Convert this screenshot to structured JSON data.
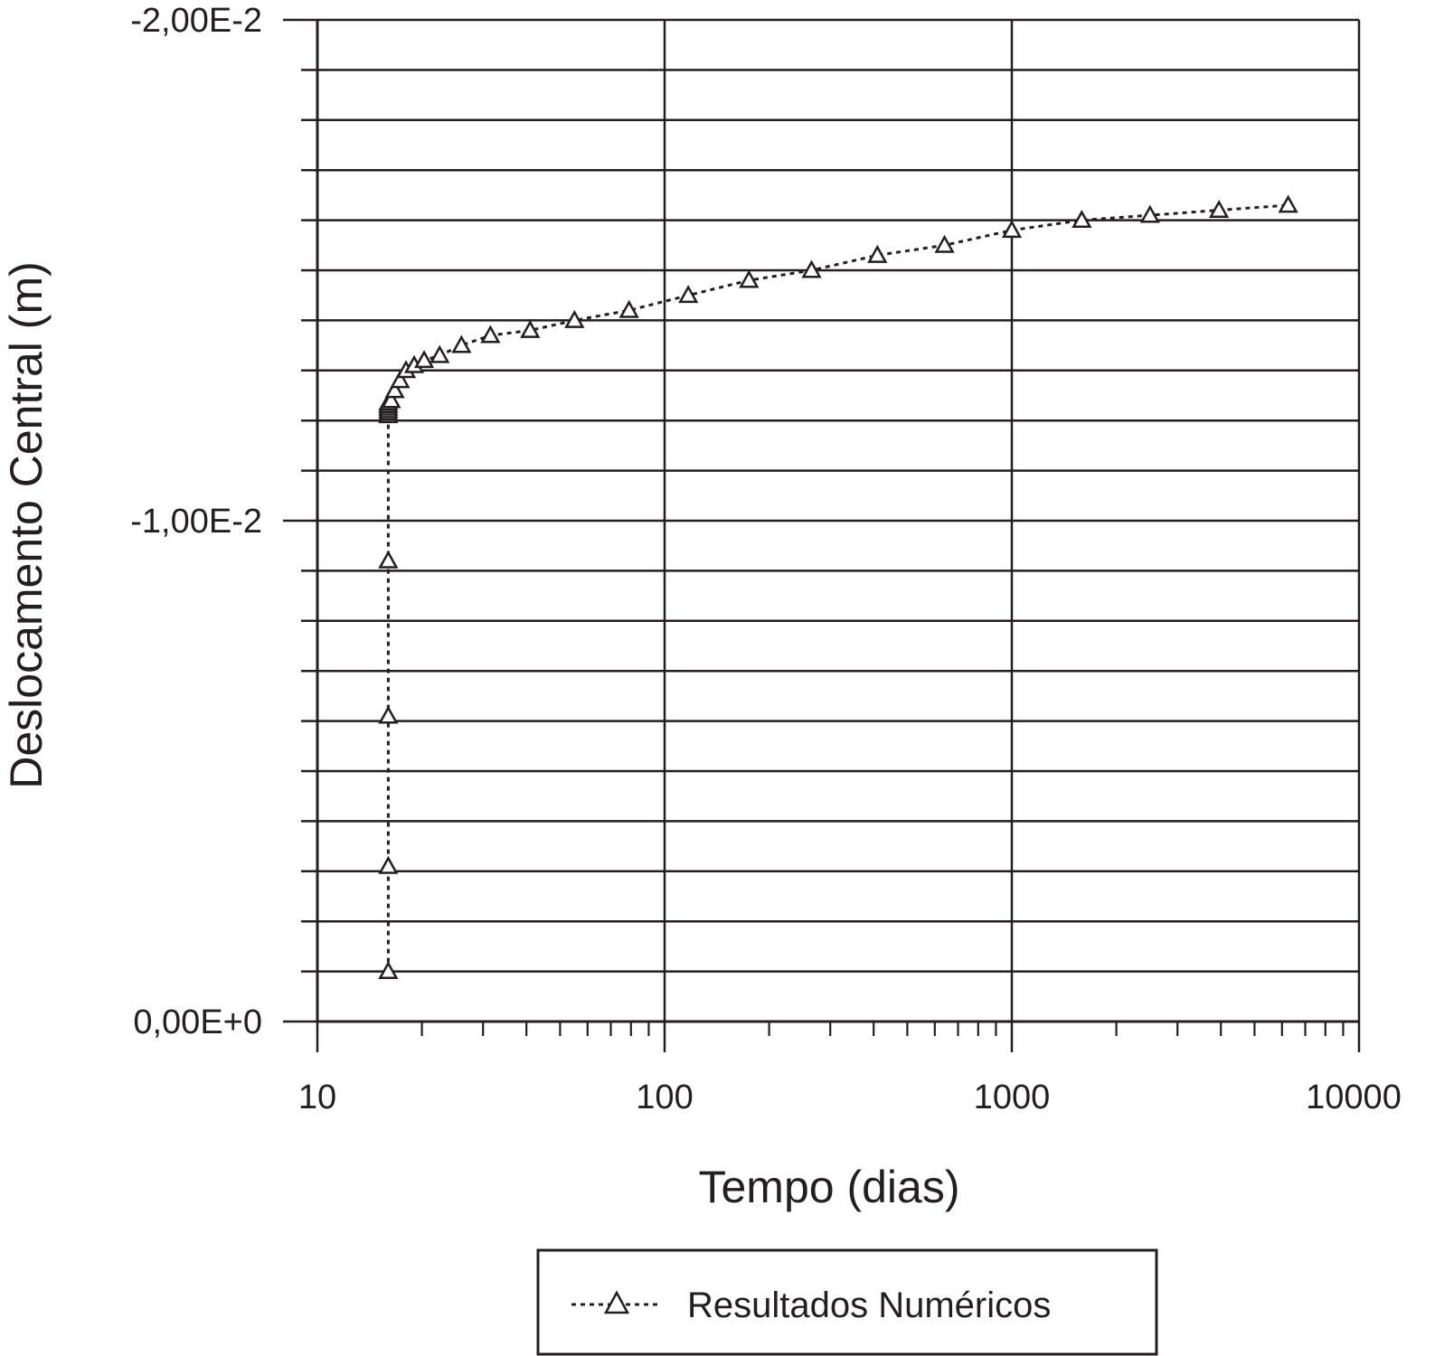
{
  "chart_data": {
    "type": "scatter",
    "x_scale": "log",
    "xlabel": "Tempo (dias)",
    "ylabel": "Deslocamento Central (m)",
    "xlim": [
      10,
      10000
    ],
    "ylim": [
      0,
      -0.02
    ],
    "x_ticks": [
      10,
      100,
      1000,
      10000
    ],
    "x_tick_labels": [
      "10",
      "100",
      "1000",
      "10000"
    ],
    "y_ticks": [
      0,
      -0.01,
      -0.02
    ],
    "y_tick_labels": [
      "0,00E+0",
      "-1,00E-2",
      "-2,00E-2"
    ],
    "y_gridline_step": -0.001,
    "grid": true,
    "legend_position": "bottom",
    "series": [
      {
        "name": "Resultados Numéricos",
        "marker": "triangle-open",
        "line": "dotted",
        "x": [
          16,
          16,
          16,
          16,
          16,
          16,
          16,
          16,
          16,
          16,
          16.3,
          16.7,
          17.3,
          18,
          19,
          20.3,
          22.5,
          26,
          31.5,
          41,
          55,
          79,
          117,
          175,
          265,
          410,
          640,
          1000,
          1590,
          2500,
          3950,
          6250
        ],
        "y": [
          -0.001,
          -0.0031,
          -0.0061,
          -0.0092,
          -0.0121,
          -0.01215,
          -0.0122,
          -0.01225,
          -0.0123,
          -0.01235,
          -0.0124,
          -0.0126,
          -0.0128,
          -0.013,
          -0.0131,
          -0.0132,
          -0.0133,
          -0.0135,
          -0.0137,
          -0.0138,
          -0.014,
          -0.0142,
          -0.0145,
          -0.0148,
          -0.015,
          -0.0153,
          -0.0155,
          -0.0158,
          -0.016,
          -0.0161,
          -0.0162,
          -0.0163
        ]
      }
    ]
  },
  "legend": {
    "label": "Resultados Numéricos"
  }
}
